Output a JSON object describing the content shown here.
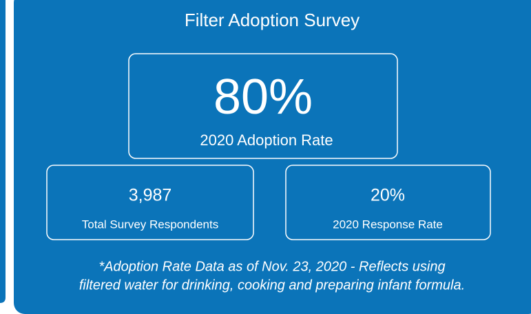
{
  "header": {
    "title": "Filter Adoption Survey"
  },
  "main_stat": {
    "value": "80%",
    "label": "2020 Adoption Rate"
  },
  "stats": [
    {
      "value": "3,987",
      "label": "Total Survey Respondents"
    },
    {
      "value": "20%",
      "label": "2020 Response Rate"
    }
  ],
  "footnote": [
    "*Adoption Rate Data as of Nov. 23, 2020 - Reflects using",
    "filtered water for drinking, cooking and preparing infant formula."
  ]
}
